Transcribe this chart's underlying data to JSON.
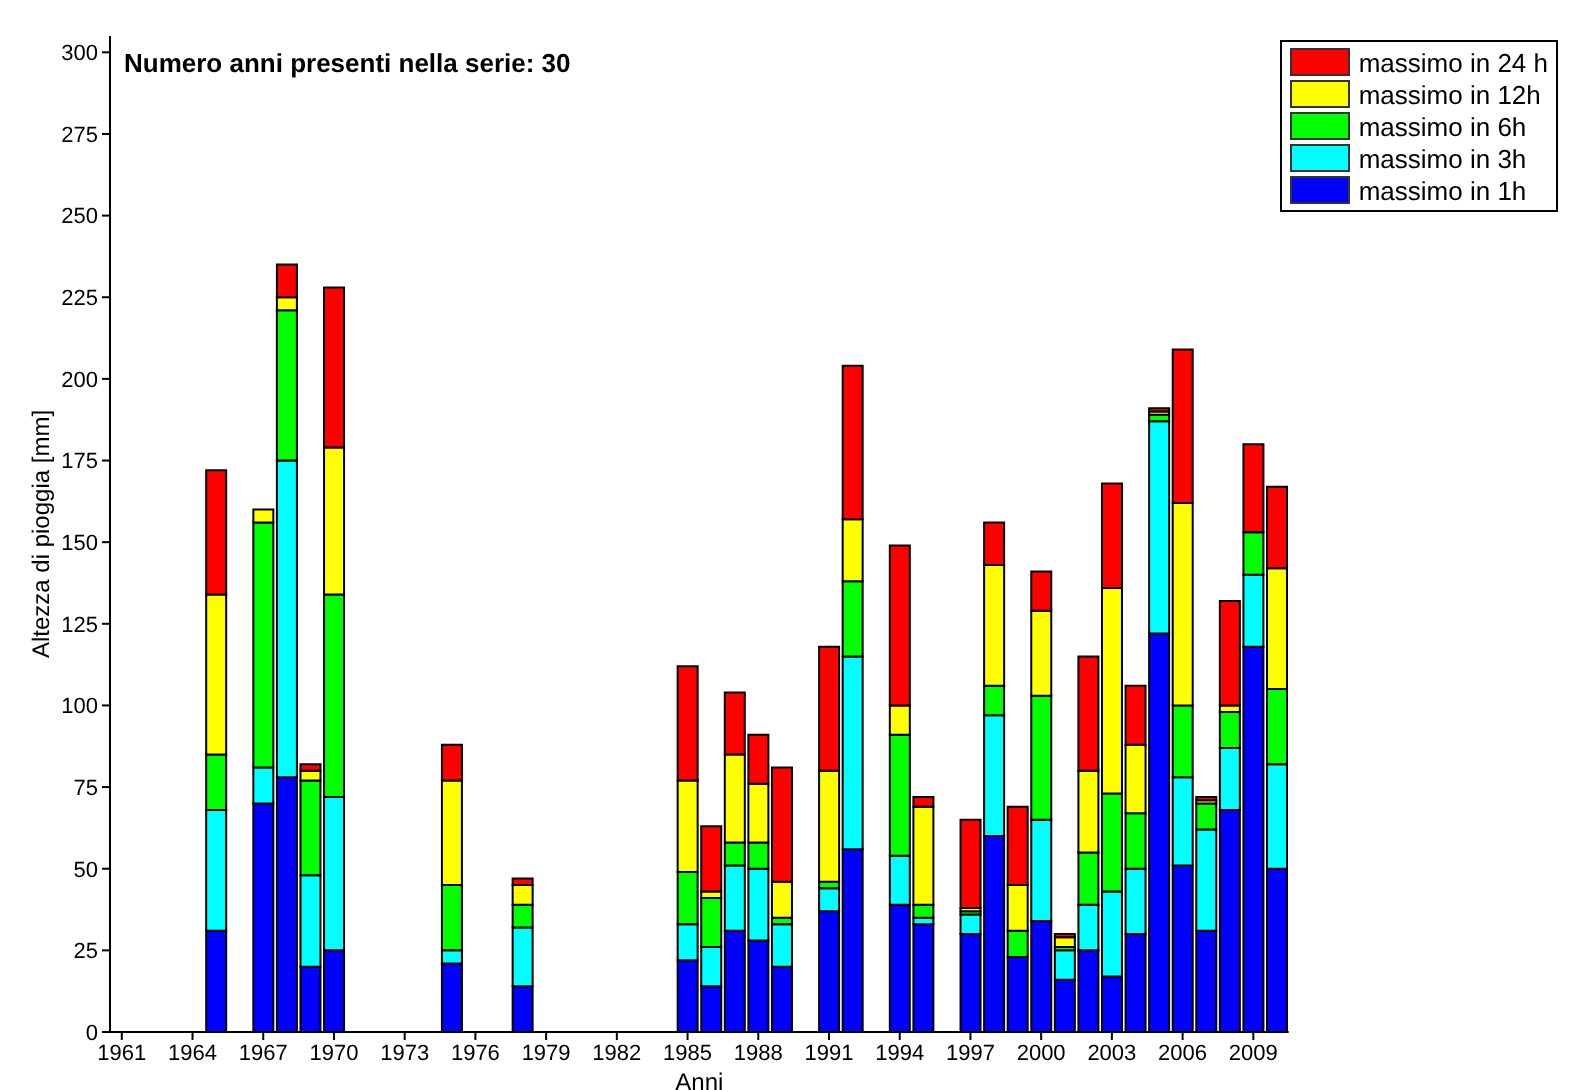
{
  "chart_data": {
    "type": "bar",
    "stacked": true,
    "annotations": [
      "Numero anni presenti nella serie: 30"
    ],
    "xlabel": "Anni",
    "ylabel": "Altezza di pioggia [mm]",
    "categories": [
      "1961",
      null,
      null,
      "1964",
      null,
      null,
      "1967",
      null,
      null,
      "1970",
      null,
      null,
      "1973",
      null,
      null,
      "1976",
      null,
      null,
      "1979",
      null,
      null,
      "1982",
      null,
      null,
      "1985",
      null,
      null,
      "1988",
      null,
      null,
      "1991",
      null,
      null,
      "1994",
      null,
      null,
      "1997",
      null,
      null,
      "2000",
      null,
      null,
      "2003",
      null,
      null,
      "2006",
      null,
      null,
      "2009",
      null
    ],
    "series": [
      {
        "name": "massimo in 1h",
        "color": "#0000ff",
        "values": [
          null,
          null,
          null,
          null,
          31,
          null,
          70,
          78,
          20,
          25,
          null,
          null,
          null,
          null,
          21,
          null,
          null,
          14,
          null,
          null,
          null,
          null,
          null,
          null,
          22,
          14,
          31,
          28,
          20,
          null,
          37,
          56,
          null,
          39,
          33,
          null,
          30,
          60,
          23,
          34,
          16,
          25,
          17,
          30,
          122,
          51,
          31,
          68,
          118,
          50
        ]
      },
      {
        "name": "massimo in 3h",
        "color": "#00ffff",
        "values": [
          null,
          null,
          null,
          null,
          37,
          null,
          11,
          97,
          28,
          47,
          null,
          null,
          null,
          null,
          4,
          null,
          null,
          18,
          null,
          null,
          null,
          null,
          null,
          null,
          11,
          12,
          20,
          22,
          13,
          null,
          7,
          59,
          null,
          15,
          2,
          null,
          6,
          37,
          0,
          31,
          9,
          14,
          26,
          20,
          65,
          27,
          31,
          19,
          22,
          32
        ]
      },
      {
        "name": "massimo in 6h",
        "color": "#00ff00",
        "values": [
          null,
          null,
          null,
          null,
          17,
          null,
          75,
          46,
          29,
          62,
          null,
          null,
          null,
          null,
          20,
          null,
          null,
          7,
          null,
          null,
          null,
          null,
          null,
          null,
          16,
          15,
          7,
          8,
          2,
          null,
          2,
          23,
          null,
          37,
          4,
          null,
          1,
          9,
          8,
          38,
          1,
          16,
          30,
          17,
          2,
          22,
          8,
          11,
          13,
          23
        ]
      },
      {
        "name": "massimo in 12h",
        "color": "#ffff00",
        "values": [
          null,
          null,
          null,
          null,
          49,
          null,
          4,
          4,
          3,
          45,
          null,
          null,
          null,
          null,
          32,
          null,
          null,
          6,
          null,
          null,
          null,
          null,
          null,
          null,
          28,
          2,
          27,
          18,
          11,
          null,
          34,
          19,
          null,
          9,
          30,
          null,
          1,
          37,
          14,
          26,
          3,
          25,
          63,
          21,
          1,
          62,
          1,
          2,
          0,
          37
        ]
      },
      {
        "name": "massimo in 24 h",
        "color": "#ff0000",
        "values": [
          null,
          null,
          null,
          null,
          38,
          null,
          0,
          10,
          2,
          49,
          null,
          null,
          null,
          null,
          11,
          null,
          null,
          2,
          null,
          null,
          null,
          null,
          null,
          null,
          35,
          20,
          19,
          15,
          35,
          null,
          38,
          47,
          null,
          49,
          3,
          null,
          27,
          13,
          24,
          12,
          1,
          35,
          32,
          18,
          1,
          47,
          1,
          32,
          27,
          25
        ]
      }
    ],
    "ylim": [
      0,
      305
    ],
    "yticks": [
      0,
      25,
      50,
      75,
      100,
      125,
      150,
      175,
      200,
      225,
      250,
      275,
      300
    ],
    "legend": "top right"
  }
}
